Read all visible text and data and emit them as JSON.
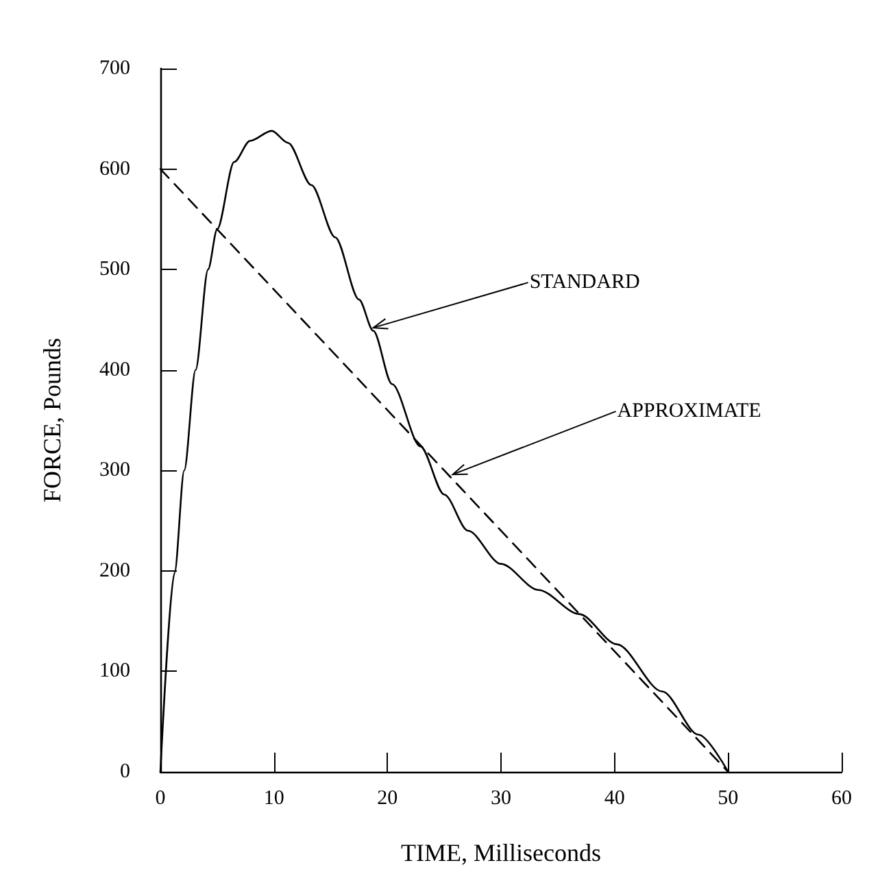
{
  "chart_data": {
    "type": "line",
    "xlabel": "TIME, Milliseconds",
    "ylabel": "FORCE, Pounds",
    "xlim": [
      0,
      60
    ],
    "xticks": [
      0,
      10,
      20,
      30,
      40,
      50,
      60
    ],
    "ylim": [
      0,
      700
    ],
    "yticks": [
      0,
      100,
      200,
      300,
      400,
      500,
      600,
      700
    ],
    "grid": false,
    "marker": "none",
    "series": [
      {
        "color": "#000000",
        "line_style": "solid",
        "x": [
          0,
          1.25,
          2.1,
          3.1,
          4.2,
          5.0,
          6.5,
          7.9,
          9.8,
          11.25,
          13.3,
          15.4,
          17.5,
          18.75,
          20.4,
          22.9,
          25,
          27.1,
          30,
          33.3,
          36.9,
          40.2,
          44.2,
          47.4,
          50
        ],
        "values": [
          0,
          198,
          300,
          400,
          500,
          540,
          607,
          628,
          638,
          626,
          584,
          532,
          470,
          439,
          386,
          324,
          276,
          240,
          207,
          181,
          157,
          127,
          80,
          37,
          0
        ]
      },
      {
        "color": "#000000",
        "line_style": "dashed",
        "x": [
          0,
          50
        ],
        "values": [
          600,
          0
        ]
      }
    ],
    "annotations": [
      {
        "text": "STANDARD",
        "x": 18.75,
        "y": 442
      },
      {
        "text": "APPROXIMATE",
        "x": 25.75,
        "y": 296
      }
    ]
  }
}
